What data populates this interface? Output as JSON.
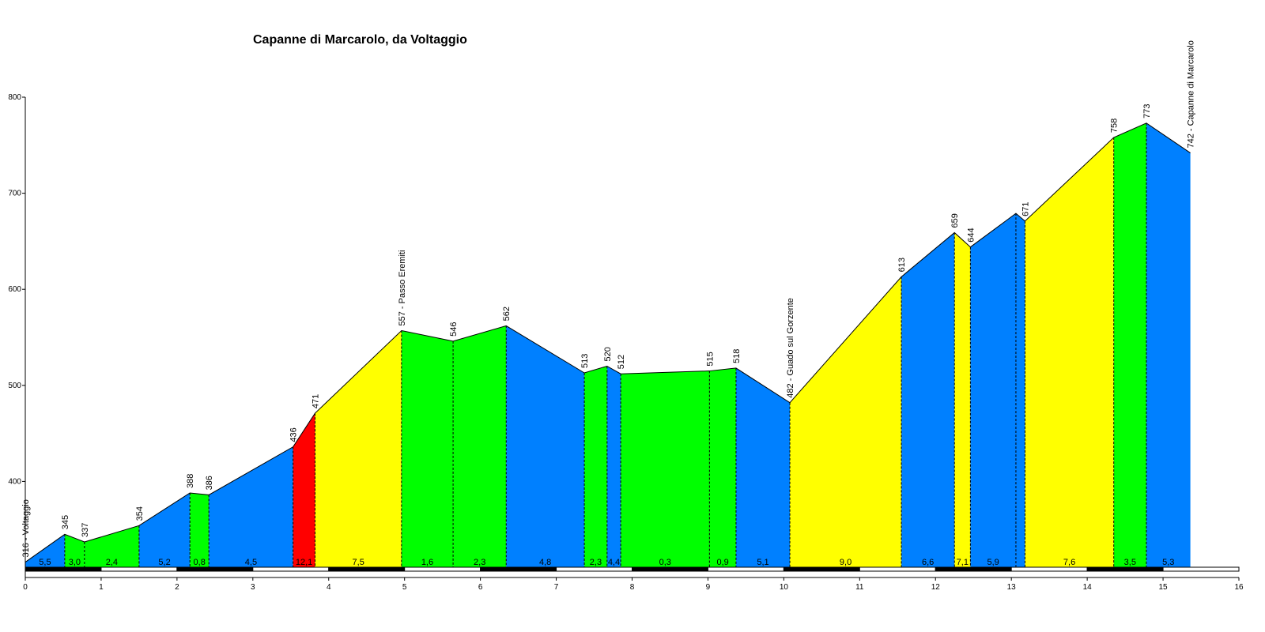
{
  "chart_data": {
    "type": "area",
    "title": "Capanne di Marcarolo, da Voltaggio",
    "xlabel": "",
    "ylabel": "",
    "xlim": [
      0,
      16
    ],
    "ylim": [
      300,
      800
    ],
    "x_ticks": [
      "0",
      "1",
      "2",
      "3",
      "4",
      "5",
      "6",
      "7",
      "8",
      "9",
      "10",
      "11",
      "12",
      "13",
      "14",
      "15",
      "16"
    ],
    "y_ticks": [
      "400",
      "500",
      "600",
      "700",
      "800"
    ],
    "grid": false,
    "points": [
      {
        "x": 0.0,
        "elev": 316,
        "label": "316 - Voltaggio"
      },
      {
        "x": 0.52,
        "elev": 345,
        "label": "345"
      },
      {
        "x": 0.78,
        "elev": 337,
        "label": "337"
      },
      {
        "x": 1.5,
        "elev": 354,
        "label": "354"
      },
      {
        "x": 2.17,
        "elev": 388,
        "label": "388"
      },
      {
        "x": 2.42,
        "elev": 386,
        "label": "386"
      },
      {
        "x": 3.53,
        "elev": 436,
        "label": "436"
      },
      {
        "x": 3.82,
        "elev": 471,
        "label": "471"
      },
      {
        "x": 4.96,
        "elev": 557,
        "label": "557 - Passo Eremiti"
      },
      {
        "x": 5.64,
        "elev": 546,
        "label": "546"
      },
      {
        "x": 6.34,
        "elev": 562,
        "label": "562"
      },
      {
        "x": 7.37,
        "elev": 513,
        "label": "513"
      },
      {
        "x": 7.67,
        "elev": 520,
        "label": "520"
      },
      {
        "x": 7.85,
        "elev": 512,
        "label": "512"
      },
      {
        "x": 9.02,
        "elev": 515,
        "label": "515"
      },
      {
        "x": 9.37,
        "elev": 518,
        "label": "518"
      },
      {
        "x": 10.08,
        "elev": 482,
        "label": "482 - Guado sul Gorzente"
      },
      {
        "x": 11.55,
        "elev": 613,
        "label": "613"
      },
      {
        "x": 12.25,
        "elev": 659,
        "label": "659"
      },
      {
        "x": 12.46,
        "elev": 644,
        "label": "644"
      },
      {
        "x": 13.06,
        "elev": 679,
        "label": ""
      },
      {
        "x": 13.18,
        "elev": 671,
        "label": "671"
      },
      {
        "x": 14.35,
        "elev": 758,
        "label": "758"
      },
      {
        "x": 14.78,
        "elev": 773,
        "label": "773"
      },
      {
        "x": 15.36,
        "elev": 742,
        "label": "742 - Capanne di Marcarolo"
      }
    ],
    "segments": [
      {
        "gradient": "5,5",
        "color": "#0080ff"
      },
      {
        "gradient": "3,0",
        "color": "#00ff00"
      },
      {
        "gradient": "2,4",
        "color": "#00ff00"
      },
      {
        "gradient": "5,2",
        "color": "#0080ff"
      },
      {
        "gradient": "0,8",
        "color": "#00ff00"
      },
      {
        "gradient": "4,5",
        "color": "#0080ff"
      },
      {
        "gradient": "12,1",
        "color": "#ff0000"
      },
      {
        "gradient": "7,5",
        "color": "#ffff00"
      },
      {
        "gradient": "1,6",
        "color": "#00ff00"
      },
      {
        "gradient": "2,3",
        "color": "#00ff00"
      },
      {
        "gradient": "4,8",
        "color": "#0080ff"
      },
      {
        "gradient": "2,3",
        "color": "#00ff00"
      },
      {
        "gradient": "4,4",
        "color": "#0080ff"
      },
      {
        "gradient": "0,3",
        "color": "#00ff00"
      },
      {
        "gradient": "0,9",
        "color": "#00ff00"
      },
      {
        "gradient": "5,1",
        "color": "#0080ff"
      },
      {
        "gradient": "9,0",
        "color": "#ffff00"
      },
      {
        "gradient": "6,6",
        "color": "#0080ff"
      },
      {
        "gradient": "7,1",
        "color": "#ffff00"
      },
      {
        "gradient": "5,9",
        "color": "#0080ff"
      },
      {
        "gradient": "",
        "color": "#0080ff"
      },
      {
        "gradient": "7,6",
        "color": "#ffff00"
      },
      {
        "gradient": "3,5",
        "color": "#00ff00"
      },
      {
        "gradient": "5,3",
        "color": "#0080ff"
      }
    ]
  }
}
